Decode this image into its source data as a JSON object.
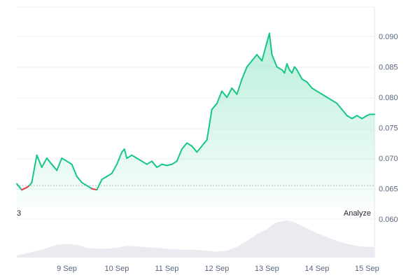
{
  "chart_data": {
    "type": "area",
    "x_ticks": [
      "9 Sep",
      "10 Sep",
      "11 Sep",
      "12 Sep",
      "13 Sep",
      "14 Sep",
      "15 Sep"
    ],
    "y_ticks": [
      "0.090",
      "0.085",
      "0.080",
      "0.075",
      "0.070",
      "0.065",
      "0.060"
    ],
    "ylim": [
      0.055,
      0.091
    ],
    "reference_line": 0.0655,
    "grid": true,
    "colors": {
      "up": "#16c784",
      "down": "#ea3943",
      "volume": "#e9ebf0",
      "grid": "#eff2f5"
    },
    "series": [
      {
        "x": [
          8.0,
          8.1,
          8.2,
          8.25,
          8.3,
          8.4,
          8.5,
          8.6,
          8.7,
          8.8,
          8.9,
          9.0,
          9.1,
          9.2,
          9.3,
          9.4,
          9.5,
          9.6,
          9.7,
          9.8,
          9.9,
          10.0,
          10.1,
          10.15,
          10.2,
          10.3,
          10.4,
          10.5,
          10.6,
          10.7,
          10.75,
          10.8,
          10.9,
          11.0,
          11.1,
          11.2,
          11.3,
          11.4,
          11.5,
          11.6,
          11.7,
          11.8,
          11.9,
          12.0,
          12.1,
          12.2,
          12.3,
          12.4,
          12.5,
          12.6,
          12.7,
          12.8,
          12.9,
          13.0,
          13.05,
          13.1,
          13.2,
          13.3,
          13.35,
          13.4,
          13.45,
          13.5,
          13.55,
          13.6,
          13.7,
          13.8,
          13.9,
          14.0,
          14.1,
          14.2,
          14.3,
          14.4,
          14.5,
          14.6,
          14.7,
          14.8,
          14.9,
          15.0,
          15.05,
          15.1,
          15.15
        ],
        "values": [
          0.0658,
          0.0648,
          0.0652,
          0.0655,
          0.066,
          0.0705,
          0.0685,
          0.07,
          0.069,
          0.068,
          0.07,
          0.0695,
          0.069,
          0.067,
          0.066,
          0.0655,
          0.065,
          0.0648,
          0.0665,
          0.067,
          0.0675,
          0.069,
          0.071,
          0.0715,
          0.07,
          0.0705,
          0.07,
          0.0695,
          0.069,
          0.0695,
          0.069,
          0.0685,
          0.069,
          0.0688,
          0.069,
          0.0695,
          0.0715,
          0.0725,
          0.072,
          0.071,
          0.072,
          0.073,
          0.078,
          0.079,
          0.081,
          0.08,
          0.0815,
          0.0805,
          0.083,
          0.085,
          0.086,
          0.087,
          0.086,
          0.089,
          0.0905,
          0.087,
          0.085,
          0.0845,
          0.084,
          0.0855,
          0.0845,
          0.084,
          0.085,
          0.0845,
          0.083,
          0.0825,
          0.0815,
          0.081,
          0.0805,
          0.08,
          0.0795,
          0.079,
          0.078,
          0.077,
          0.0765,
          0.077,
          0.0765,
          0.077,
          0.0772,
          0.0772,
          0.0772
        ]
      }
    ],
    "volume": {
      "x": [
        8.0,
        8.5,
        8.8,
        9.0,
        9.2,
        9.4,
        9.6,
        9.8,
        10.0,
        10.2,
        10.5,
        10.8,
        11.0,
        11.3,
        11.6,
        11.8,
        12.0,
        12.2,
        12.4,
        12.6,
        12.8,
        13.0,
        13.1,
        13.2,
        13.4,
        13.5,
        13.6,
        13.8,
        14.0,
        14.2,
        14.4,
        14.6,
        14.8,
        15.0,
        15.15
      ],
      "values": [
        2,
        8,
        13,
        14,
        13,
        10,
        9,
        9,
        10,
        12,
        11,
        10,
        9,
        8,
        8,
        7,
        6,
        7,
        11,
        17,
        24,
        29,
        33,
        36,
        38,
        37,
        35,
        30,
        25,
        21,
        17,
        14,
        12,
        11,
        11
      ]
    }
  },
  "ui": {
    "left_label": "3",
    "analyze_label": "Analyze"
  }
}
